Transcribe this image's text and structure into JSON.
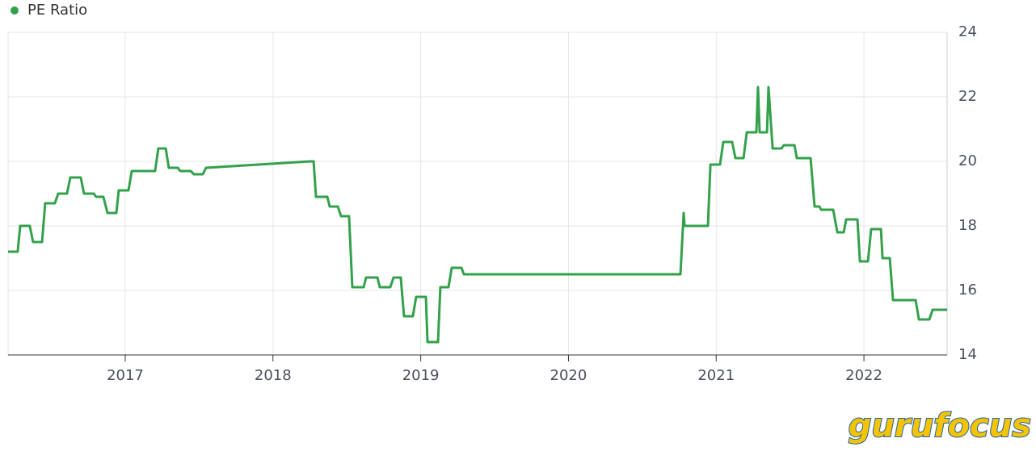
{
  "chart_data": {
    "type": "line",
    "legend": "top-left",
    "grid": true,
    "xlim": [
      2016.207,
      2022.563
    ],
    "xticks": [
      2017,
      2018,
      2019,
      2020,
      2021,
      2022
    ],
    "ylim": [
      14,
      24
    ],
    "yticks": [
      14,
      16,
      18,
      20,
      22,
      24
    ],
    "y_axis_side": "right",
    "watermark": "gurufocus",
    "series": [
      {
        "name": "PE Ratio",
        "color": "#33a14b",
        "x": [
          2016.207,
          2016.272,
          2016.289,
          2016.354,
          2016.376,
          2016.437,
          2016.458,
          2016.524,
          2016.546,
          2016.606,
          2016.628,
          2016.699,
          2016.721,
          2016.787,
          2016.803,
          2016.852,
          2016.88,
          2016.94,
          2016.956,
          2017.022,
          2017.044,
          2017.202,
          2017.224,
          2017.274,
          2017.295,
          2017.356,
          2017.372,
          2017.443,
          2017.465,
          2017.525,
          2017.547,
          2018.258,
          2018.275,
          2018.291,
          2018.368,
          2018.384,
          2018.439,
          2018.461,
          2018.515,
          2018.537,
          2018.614,
          2018.63,
          2018.707,
          2018.723,
          2018.794,
          2018.816,
          2018.865,
          2018.887,
          2018.947,
          2018.969,
          2019.035,
          2019.046,
          2019.117,
          2019.133,
          2019.188,
          2019.21,
          2019.276,
          2019.292,
          2020.758,
          2020.78,
          2020.786,
          2020.944,
          2020.961,
          2021.026,
          2021.048,
          2021.108,
          2021.13,
          2021.185,
          2021.207,
          2021.272,
          2021.283,
          2021.294,
          2021.344,
          2021.354,
          2021.382,
          2021.442,
          2021.458,
          2021.53,
          2021.546,
          2021.639,
          2021.666,
          2021.699,
          2021.71,
          2021.792,
          2021.82,
          2021.863,
          2021.88,
          2021.956,
          2021.973,
          2022.027,
          2022.049,
          2022.115,
          2022.126,
          2022.175,
          2022.197,
          2022.35,
          2022.372,
          2022.443,
          2022.465,
          2022.563
        ],
        "values": [
          17.2,
          17.2,
          18.0,
          18.0,
          17.5,
          17.5,
          18.7,
          18.7,
          19.0,
          19.0,
          19.5,
          19.5,
          19.0,
          19.0,
          18.9,
          18.9,
          18.4,
          18.4,
          19.1,
          19.1,
          19.7,
          19.7,
          20.4,
          20.4,
          19.8,
          19.8,
          19.7,
          19.7,
          19.6,
          19.6,
          19.8,
          20.0,
          20.0,
          18.9,
          18.9,
          18.6,
          18.6,
          18.3,
          18.3,
          16.1,
          16.1,
          16.4,
          16.4,
          16.1,
          16.1,
          16.4,
          16.4,
          15.2,
          15.2,
          15.8,
          15.8,
          14.4,
          14.4,
          16.1,
          16.1,
          16.7,
          16.7,
          16.5,
          16.5,
          18.4,
          18.0,
          18.0,
          19.9,
          19.9,
          20.6,
          20.6,
          20.1,
          20.1,
          20.9,
          20.9,
          22.3,
          20.9,
          20.9,
          22.3,
          20.4,
          20.4,
          20.5,
          20.5,
          20.1,
          20.1,
          18.6,
          18.6,
          18.5,
          18.5,
          17.8,
          17.8,
          18.2,
          18.2,
          16.9,
          16.9,
          17.9,
          17.9,
          17.0,
          17.0,
          15.7,
          15.7,
          15.1,
          15.1,
          15.4,
          15.4
        ]
      }
    ]
  }
}
